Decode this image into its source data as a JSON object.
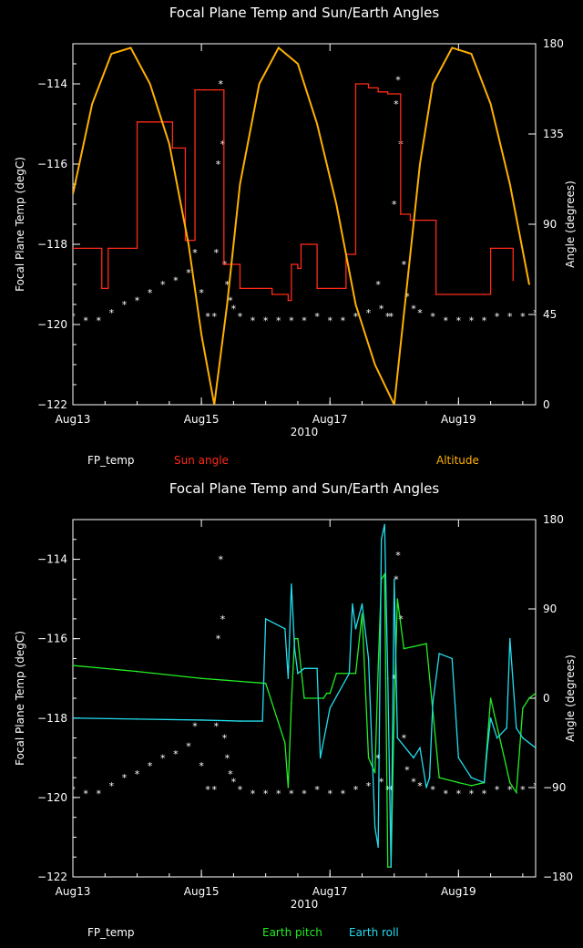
{
  "chart_data": [
    {
      "type": "line",
      "title": "Focal Plane Temp and Sun/Earth Angles",
      "xlabel": "2010",
      "ylabel": "Focal Plane Temp (degC)",
      "y2label": "Angle (degrees)",
      "xlim": [
        13,
        20.2
      ],
      "ylim": [
        -122,
        -113
      ],
      "y2lim": [
        0,
        180
      ],
      "xticks": [
        13,
        15,
        17,
        19
      ],
      "xtick_labels": [
        "Aug13",
        "Aug15",
        "Aug17",
        "Aug19"
      ],
      "yticks": [
        -122,
        -120,
        -118,
        -116,
        -114
      ],
      "ytick_labels": [
        "−122",
        "−120",
        "−118",
        "−116",
        "−114"
      ],
      "y2ticks": [
        0,
        45,
        90,
        135,
        180
      ],
      "y2tick_labels": [
        "0",
        "45",
        "90",
        "135",
        "180"
      ],
      "legend": [
        {
          "label": "FP_temp",
          "color": "#ffffff"
        },
        {
          "label": "Sun angle",
          "color": "#ff2a1a"
        },
        {
          "label": "Altitude",
          "color": "#ffb000"
        }
      ],
      "series": [
        {
          "name": "FP_temp",
          "axis": "left",
          "style": "points",
          "color": "#ffffff",
          "x": [
            13.0,
            13.2,
            13.4,
            13.6,
            13.8,
            14.0,
            14.2,
            14.4,
            14.6,
            14.8,
            14.9,
            15.0,
            15.1,
            15.2,
            15.23,
            15.26,
            15.3,
            15.33,
            15.36,
            15.4,
            15.45,
            15.5,
            15.6,
            15.8,
            16.0,
            16.2,
            16.4,
            16.6,
            16.8,
            17.0,
            17.2,
            17.4,
            17.6,
            17.75,
            17.8,
            17.9,
            17.95,
            18.0,
            18.03,
            18.06,
            18.1,
            18.15,
            18.2,
            18.3,
            18.4,
            18.6,
            18.8,
            19.0,
            19.2,
            19.4,
            19.6,
            19.8,
            20.0,
            20.2
          ],
          "y": [
            -119.8,
            -119.9,
            -119.9,
            -119.7,
            -119.5,
            -119.4,
            -119.2,
            -119.0,
            -118.9,
            -118.7,
            -118.2,
            -119.2,
            -119.8,
            -119.8,
            -118.2,
            -116.0,
            -114.0,
            -115.5,
            -118.5,
            -119.0,
            -119.4,
            -119.6,
            -119.8,
            -119.9,
            -119.9,
            -119.9,
            -119.9,
            -119.9,
            -119.8,
            -119.9,
            -119.9,
            -119.8,
            -119.7,
            -119.0,
            -119.6,
            -119.8,
            -119.8,
            -117.0,
            -114.5,
            -113.9,
            -115.5,
            -118.5,
            -119.3,
            -119.6,
            -119.7,
            -119.8,
            -119.9,
            -119.9,
            -119.9,
            -119.9,
            -119.8,
            -119.8,
            -119.8,
            -119.7
          ]
        },
        {
          "name": "Sun angle",
          "axis": "right",
          "style": "step",
          "color": "#ff2a1a",
          "x": [
            13.0,
            13.45,
            13.5,
            13.55,
            14.0,
            14.55,
            14.75,
            14.9,
            15.05,
            15.2,
            15.35,
            15.6,
            15.9,
            16.1,
            16.35,
            16.4,
            16.5,
            16.55,
            16.7,
            16.8,
            17.15,
            17.25,
            17.4,
            17.6,
            17.75,
            17.9,
            18.0,
            18.1,
            18.25,
            18.5,
            18.65,
            19.4,
            19.5,
            19.75,
            19.85
          ],
          "y": [
            78,
            58,
            58,
            78,
            141,
            128,
            82,
            157,
            157,
            157,
            70,
            58,
            58,
            55,
            52,
            70,
            68,
            80,
            80,
            58,
            58,
            75,
            160,
            158,
            156,
            155,
            155,
            95,
            92,
            92,
            55,
            55,
            78,
            78,
            62
          ]
        },
        {
          "name": "Altitude",
          "axis": "right",
          "style": "line",
          "color": "#ffb000",
          "x": [
            13.0,
            13.3,
            13.6,
            13.9,
            14.2,
            14.5,
            14.8,
            15.0,
            15.2,
            15.4,
            15.6,
            15.9,
            16.2,
            16.5,
            16.8,
            17.1,
            17.4,
            17.7,
            18.0,
            18.2,
            18.4,
            18.6,
            18.9,
            19.2,
            19.5,
            19.8,
            20.1
          ],
          "y": [
            105,
            150,
            175,
            178,
            160,
            130,
            80,
            35,
            0,
            50,
            110,
            160,
            178,
            170,
            140,
            100,
            50,
            20,
            0,
            60,
            120,
            160,
            178,
            175,
            150,
            110,
            60
          ]
        }
      ]
    },
    {
      "type": "line",
      "title": "Focal Plane Temp and Sun/Earth Angles",
      "xlabel": "2010",
      "ylabel": "Focal Plane Temp (degC)",
      "y2label": "Angle (degrees)",
      "xlim": [
        13,
        20.2
      ],
      "ylim": [
        -122,
        -113
      ],
      "y2lim": [
        -180,
        180
      ],
      "xticks": [
        13,
        15,
        17,
        19
      ],
      "xtick_labels": [
        "Aug13",
        "Aug15",
        "Aug17",
        "Aug19"
      ],
      "yticks": [
        -122,
        -120,
        -118,
        -116,
        -114
      ],
      "ytick_labels": [
        "−122",
        "−120",
        "−118",
        "−116",
        "−114"
      ],
      "y2ticks": [
        -180,
        -90,
        0,
        90,
        180
      ],
      "y2tick_labels": [
        "−180",
        "−90",
        "0",
        "90",
        "180"
      ],
      "legend": [
        {
          "label": "FP_temp",
          "color": "#ffffff"
        },
        {
          "label": "Earth pitch",
          "color": "#22ee22"
        },
        {
          "label": "Earth roll",
          "color": "#22ddee"
        }
      ],
      "series": [
        {
          "name": "FP_temp",
          "axis": "left",
          "style": "points",
          "color": "#ffffff",
          "x": [
            13.0,
            13.2,
            13.4,
            13.6,
            13.8,
            14.0,
            14.2,
            14.4,
            14.6,
            14.8,
            14.9,
            15.0,
            15.1,
            15.2,
            15.23,
            15.26,
            15.3,
            15.33,
            15.36,
            15.4,
            15.45,
            15.5,
            15.6,
            15.8,
            16.0,
            16.2,
            16.4,
            16.6,
            16.8,
            17.0,
            17.2,
            17.4,
            17.6,
            17.75,
            17.8,
            17.9,
            17.95,
            18.0,
            18.03,
            18.06,
            18.1,
            18.15,
            18.2,
            18.3,
            18.4,
            18.6,
            18.8,
            19.0,
            19.2,
            19.4,
            19.6,
            19.8,
            20.0,
            20.2
          ],
          "y": [
            -119.8,
            -119.9,
            -119.9,
            -119.7,
            -119.5,
            -119.4,
            -119.2,
            -119.0,
            -118.9,
            -118.7,
            -118.2,
            -119.2,
            -119.8,
            -119.8,
            -118.2,
            -116.0,
            -114.0,
            -115.5,
            -118.5,
            -119.0,
            -119.4,
            -119.6,
            -119.8,
            -119.9,
            -119.9,
            -119.9,
            -119.9,
            -119.9,
            -119.8,
            -119.9,
            -119.9,
            -119.8,
            -119.7,
            -119.0,
            -119.6,
            -119.8,
            -119.8,
            -117.0,
            -114.5,
            -113.9,
            -115.5,
            -118.5,
            -119.3,
            -119.6,
            -119.7,
            -119.8,
            -119.9,
            -119.9,
            -119.9,
            -119.9,
            -119.8,
            -119.8,
            -119.8,
            -119.7
          ]
        },
        {
          "name": "Earth pitch",
          "axis": "right",
          "style": "line",
          "color": "#22ee22",
          "x": [
            13.0,
            14.0,
            15.0,
            15.6,
            16.0,
            16.3,
            16.35,
            16.4,
            16.45,
            16.5,
            16.6,
            16.9,
            16.95,
            17.0,
            17.1,
            17.4,
            17.5,
            17.6,
            17.7,
            17.75,
            17.8,
            17.85,
            17.9,
            17.95,
            18.0,
            18.05,
            18.15,
            18.3,
            18.5,
            18.7,
            19.0,
            19.2,
            19.4,
            19.5,
            19.8,
            19.9,
            20.0,
            20.1,
            20.2
          ],
          "y": [
            33,
            27,
            20,
            17,
            15,
            -45,
            -90,
            -5,
            60,
            60,
            0,
            0,
            5,
            5,
            25,
            25,
            85,
            -60,
            -75,
            30,
            120,
            125,
            -170,
            -170,
            -10,
            100,
            50,
            52,
            55,
            -80,
            -85,
            -88,
            -85,
            0,
            -85,
            -95,
            -10,
            0,
            5
          ]
        },
        {
          "name": "Earth roll",
          "axis": "right",
          "style": "line",
          "color": "#22ddee",
          "x": [
            13.0,
            14.0,
            15.0,
            15.6,
            15.95,
            16.0,
            16.3,
            16.35,
            16.4,
            16.45,
            16.5,
            16.6,
            16.8,
            16.85,
            17.0,
            17.3,
            17.35,
            17.4,
            17.5,
            17.6,
            17.7,
            17.75,
            17.8,
            17.85,
            17.9,
            17.95,
            18.0,
            18.05,
            18.3,
            18.4,
            18.5,
            18.55,
            18.6,
            18.7,
            18.9,
            19.0,
            19.2,
            19.4,
            19.45,
            19.5,
            19.6,
            19.75,
            19.8,
            19.9,
            20.0,
            20.2
          ],
          "y": [
            -20,
            -21,
            -22,
            -23,
            -23,
            80,
            70,
            20,
            115,
            50,
            25,
            30,
            30,
            -60,
            -10,
            25,
            95,
            70,
            95,
            40,
            -130,
            -150,
            160,
            175,
            20,
            -170,
            120,
            -40,
            -60,
            -50,
            -90,
            -80,
            -5,
            45,
            40,
            -60,
            -80,
            -85,
            -50,
            -20,
            -40,
            -30,
            60,
            -30,
            -40,
            -50
          ]
        }
      ]
    }
  ]
}
